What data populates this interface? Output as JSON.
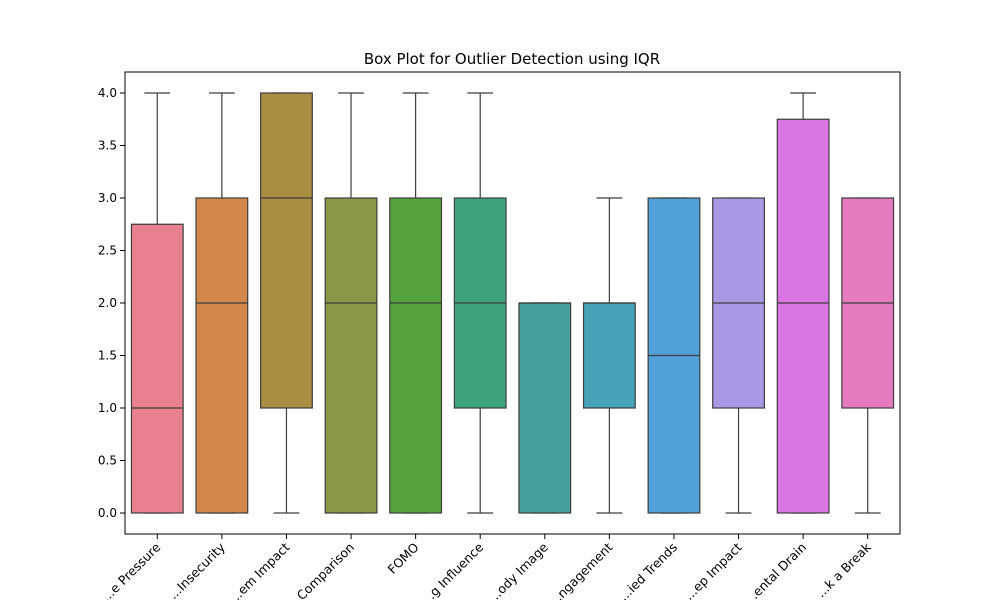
{
  "chart_data": {
    "type": "box",
    "title": "Box Plot for Outlier Detection using IQR",
    "xlabel": "",
    "ylabel": "",
    "ylim": [
      -0.2,
      4.2
    ],
    "yticks": [
      0.0,
      0.5,
      1.0,
      1.5,
      2.0,
      2.5,
      3.0,
      3.5,
      4.0
    ],
    "ytick_labels": [
      "0.0",
      "0.5",
      "1.0",
      "1.5",
      "2.0",
      "2.5",
      "3.0",
      "3.5",
      "4.0"
    ],
    "grid": false,
    "legend": "none",
    "categories": [
      "...e Pressure",
      "...Insecurity",
      "...em Impact",
      "...Comparison",
      "FOMO",
      "...g Influence",
      "...ody Image",
      "...ngagement",
      "...ied Trends",
      "...ep Impact",
      "...ental Drain",
      "...k a Break"
    ],
    "boxes": [
      {
        "whisker_low": 0,
        "q1": 0,
        "median": 1,
        "q3": 2.75,
        "whisker_high": 4,
        "color": "#e8808f"
      },
      {
        "whisker_low": 0,
        "q1": 0,
        "median": 2,
        "q3": 3,
        "whisker_high": 4,
        "color": "#d1884a"
      },
      {
        "whisker_low": 0,
        "q1": 1,
        "median": 3,
        "q3": 4,
        "whisker_high": 4,
        "color": "#a98e42"
      },
      {
        "whisker_low": 0,
        "q1": 0,
        "median": 2,
        "q3": 3,
        "whisker_high": 4,
        "color": "#8a9745"
      },
      {
        "whisker_low": 0,
        "q1": 0,
        "median": 2,
        "q3": 3,
        "whisker_high": 4,
        "color": "#57a43e"
      },
      {
        "whisker_low": 0,
        "q1": 1,
        "median": 2,
        "q3": 3,
        "whisker_high": 4,
        "color": "#3fa37d"
      },
      {
        "whisker_low": 0,
        "q1": 0,
        "median": 2,
        "q3": 2,
        "whisker_high": 2,
        "color": "#45a19b"
      },
      {
        "whisker_low": 0,
        "q1": 1,
        "median": 2,
        "q3": 2,
        "whisker_high": 3,
        "color": "#48a2b7"
      },
      {
        "whisker_low": 0,
        "q1": 0,
        "median": 1.5,
        "q3": 3,
        "whisker_high": 3,
        "color": "#52a0d8"
      },
      {
        "whisker_low": 0,
        "q1": 1,
        "median": 2,
        "q3": 3,
        "whisker_high": 3,
        "color": "#aa98e5"
      },
      {
        "whisker_low": 0,
        "q1": 0,
        "median": 2,
        "q3": 3.75,
        "whisker_high": 4,
        "color": "#da76e4"
      },
      {
        "whisker_low": 0,
        "q1": 1,
        "median": 2,
        "q3": 3,
        "whisker_high": 3,
        "color": "#e57abe"
      }
    ]
  }
}
